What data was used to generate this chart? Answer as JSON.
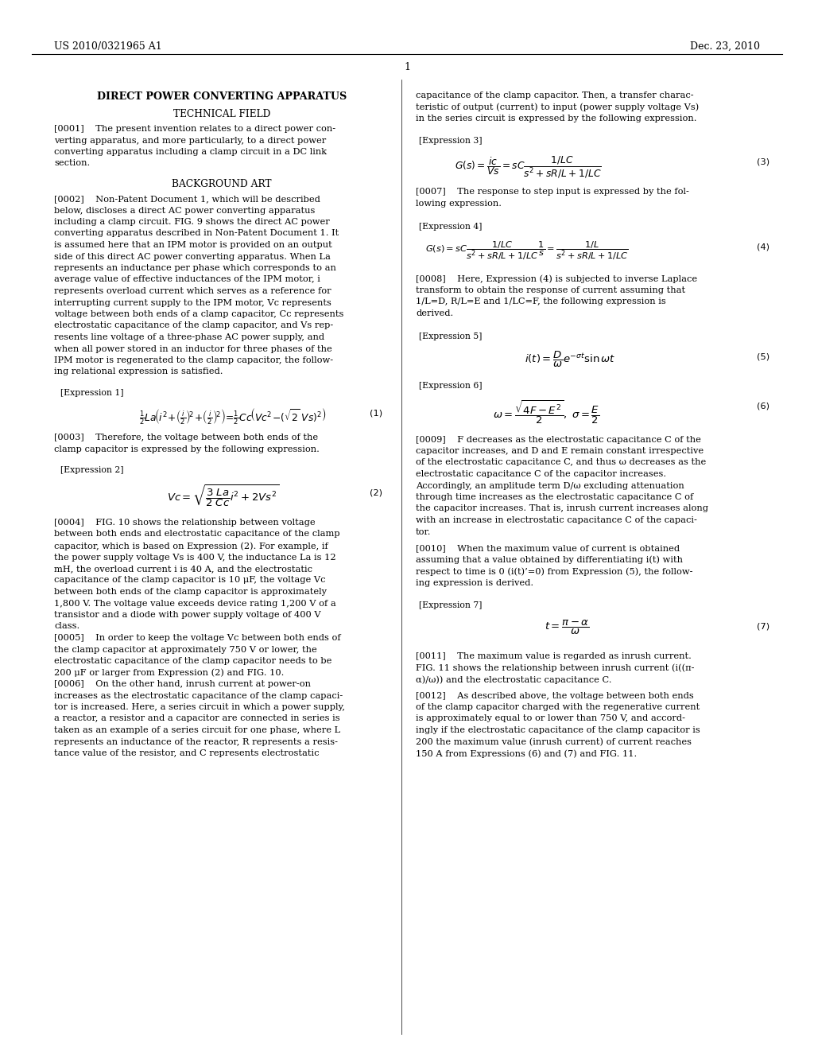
{
  "background_color": "#ffffff",
  "header_left": "US 2010/0321965 A1",
  "header_right": "Dec. 23, 2010",
  "page_number": "1",
  "left_col": {
    "title": "DIRECT POWER CONVERTING APPARATUS",
    "section1": "TECHNICAL FIELD",
    "para0001": [
      "[0001]    The present invention relates to a direct power con-",
      "verting apparatus, and more particularly, to a direct power",
      "converting apparatus including a clamp circuit in a DC link",
      "section."
    ],
    "section2": "BACKGROUND ART",
    "para0002": [
      "[0002]    Non-Patent Document 1, which will be described",
      "below, discloses a direct AC power converting apparatus",
      "including a clamp circuit. FIG. 9 shows the direct AC power",
      "converting apparatus described in Non-Patent Document 1. It",
      "is assumed here that an IPM motor is provided on an output",
      "side of this direct AC power converting apparatus. When La",
      "represents an inductance per phase which corresponds to an",
      "average value of effective inductances of the IPM motor, i",
      "represents overload current which serves as a reference for",
      "interrupting current supply to the IPM motor, Vc represents",
      "voltage between both ends of a clamp capacitor, Cc represents",
      "electrostatic capacitance of the clamp capacitor, and Vs rep-",
      "resents line voltage of a three-phase AC power supply, and",
      "when all power stored in an inductor for three phases of the",
      "IPM motor is regenerated to the clamp capacitor, the follow-",
      "ing relational expression is satisfied."
    ],
    "expr1_label": "[Expression 1]",
    "para0003": [
      "[0003]    Therefore, the voltage between both ends of the",
      "clamp capacitor is expressed by the following expression."
    ],
    "expr2_label": "[Expression 2]",
    "para0004": [
      "[0004]    FIG. 10 shows the relationship between voltage",
      "between both ends and electrostatic capacitance of the clamp",
      "capacitor, which is based on Expression (2). For example, if",
      "the power supply voltage Vs is 400 V, the inductance La is 12",
      "mH, the overload current i is 40 A, and the electrostatic",
      "capacitance of the clamp capacitor is 10 μF, the voltage Vc",
      "between both ends of the clamp capacitor is approximately",
      "1,800 V. The voltage value exceeds device rating 1,200 V of a",
      "transistor and a diode with power supply voltage of 400 V",
      "class."
    ],
    "para0005": [
      "[0005]    In order to keep the voltage Vc between both ends of",
      "the clamp capacitor at approximately 750 V or lower, the",
      "electrostatic capacitance of the clamp capacitor needs to be",
      "200 μF or larger from Expression (2) and FIG. 10."
    ],
    "para0006": [
      "[0006]    On the other hand, inrush current at power-on",
      "increases as the electrostatic capacitance of the clamp capaci-",
      "tor is increased. Here, a series circuit in which a power supply,",
      "a reactor, a resistor and a capacitor are connected in series is",
      "taken as an example of a series circuit for one phase, where L",
      "represents an inductance of the reactor, R represents a resis-",
      "tance value of the resistor, and C represents electrostatic"
    ]
  },
  "right_col": {
    "para_top": [
      "capacitance of the clamp capacitor. Then, a transfer charac-",
      "teristic of output (current) to input (power supply voltage Vs)",
      "in the series circuit is expressed by the following expression."
    ],
    "expr3_label": "[Expression 3]",
    "para0007": [
      "[0007]    The response to step input is expressed by the fol-",
      "lowing expression."
    ],
    "expr4_label": "[Expression 4]",
    "para0008": [
      "[0008]    Here, Expression (4) is subjected to inverse Laplace",
      "transform to obtain the response of current assuming that",
      "1/L=D, R/L=E and 1/LC=F, the following expression is",
      "derived."
    ],
    "expr5_label": "[Expression 5]",
    "expr6_label": "[Expression 6]",
    "para0009": [
      "[0009]    F decreases as the electrostatic capacitance C of the",
      "capacitor increases, and D and E remain constant irrespective",
      "of the electrostatic capacitance C, and thus ω decreases as the",
      "electrostatic capacitance C of the capacitor increases.",
      "Accordingly, an amplitude term D/ω excluding attenuation",
      "through time increases as the electrostatic capacitance C of",
      "the capacitor increases. That is, inrush current increases along",
      "with an increase in electrostatic capacitance C of the capaci-",
      "tor."
    ],
    "para0010": [
      "[0010]    When the maximum value of current is obtained",
      "assuming that a value obtained by differentiating i(t) with",
      "respect to time is 0 (i(t)’=0) from Expression (5), the follow-",
      "ing expression is derived."
    ],
    "expr7_label": "[Expression 7]",
    "para0011": [
      "[0011]    The maximum value is regarded as inrush current.",
      "FIG. 11 shows the relationship between inrush current (i((π-",
      "α)/ω)) and the electrostatic capacitance C."
    ],
    "para0012": [
      "[0012]    As described above, the voltage between both ends",
      "of the clamp capacitor charged with the regenerative current",
      "is approximately equal to or lower than 750 V, and accord-",
      "ingly if the electrostatic capacitance of the clamp capacitor is",
      "200 the maximum value (inrush current) of current reaches",
      "150 A from Expressions (6) and (7) and FIG. 11."
    ]
  }
}
